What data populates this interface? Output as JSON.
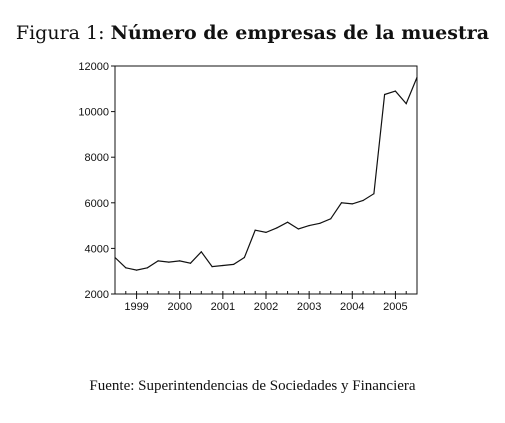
{
  "figure": {
    "label": "Figura 1:",
    "title": "Número de empresas de la muestra",
    "source": "Fuente: Superintendencias de Sociedades y Financiera"
  },
  "chart_data": {
    "type": "line",
    "title": "Número de empresas de la muestra",
    "xlabel": "",
    "ylabel": "",
    "ylim": [
      2000,
      12000
    ],
    "yticks": [
      2000,
      4000,
      6000,
      8000,
      10000,
      12000
    ],
    "ytick_labels": [
      "2000",
      "4000",
      "6000",
      "8000",
      "10000",
      "12000"
    ],
    "xlim": [
      1998.5,
      2005.5
    ],
    "xticks": [
      1999,
      2000,
      2001,
      2002,
      2003,
      2004,
      2005
    ],
    "xtick_labels": [
      "1999",
      "2000",
      "2001",
      "2002",
      "2003",
      "2004",
      "2005"
    ],
    "grid": false,
    "series": [
      {
        "name": "",
        "x": [
          "1998-Q3",
          "1998-Q4",
          "1999-Q1",
          "1999-Q2",
          "1999-Q3",
          "1999-Q4",
          "2000-Q1",
          "2000-Q2",
          "2000-Q3",
          "2000-Q4",
          "2001-Q1",
          "2001-Q2",
          "2001-Q3",
          "2001-Q4",
          "2002-Q1",
          "2002-Q2",
          "2002-Q3",
          "2002-Q4",
          "2003-Q1",
          "2003-Q2",
          "2003-Q3",
          "2003-Q4",
          "2004-Q1",
          "2004-Q2",
          "2004-Q3",
          "2004-Q4",
          "2005-Q1",
          "2005-Q2",
          "2005-Q3"
        ],
        "values": [
          3600,
          3150,
          3050,
          3150,
          3450,
          3400,
          3450,
          3350,
          3850,
          3200,
          3250,
          3300,
          3600,
          4800,
          4700,
          4900,
          5150,
          4850,
          5000,
          5100,
          5300,
          6000,
          5950,
          6100,
          6400,
          10750,
          10900,
          10350,
          11500
        ]
      }
    ]
  }
}
